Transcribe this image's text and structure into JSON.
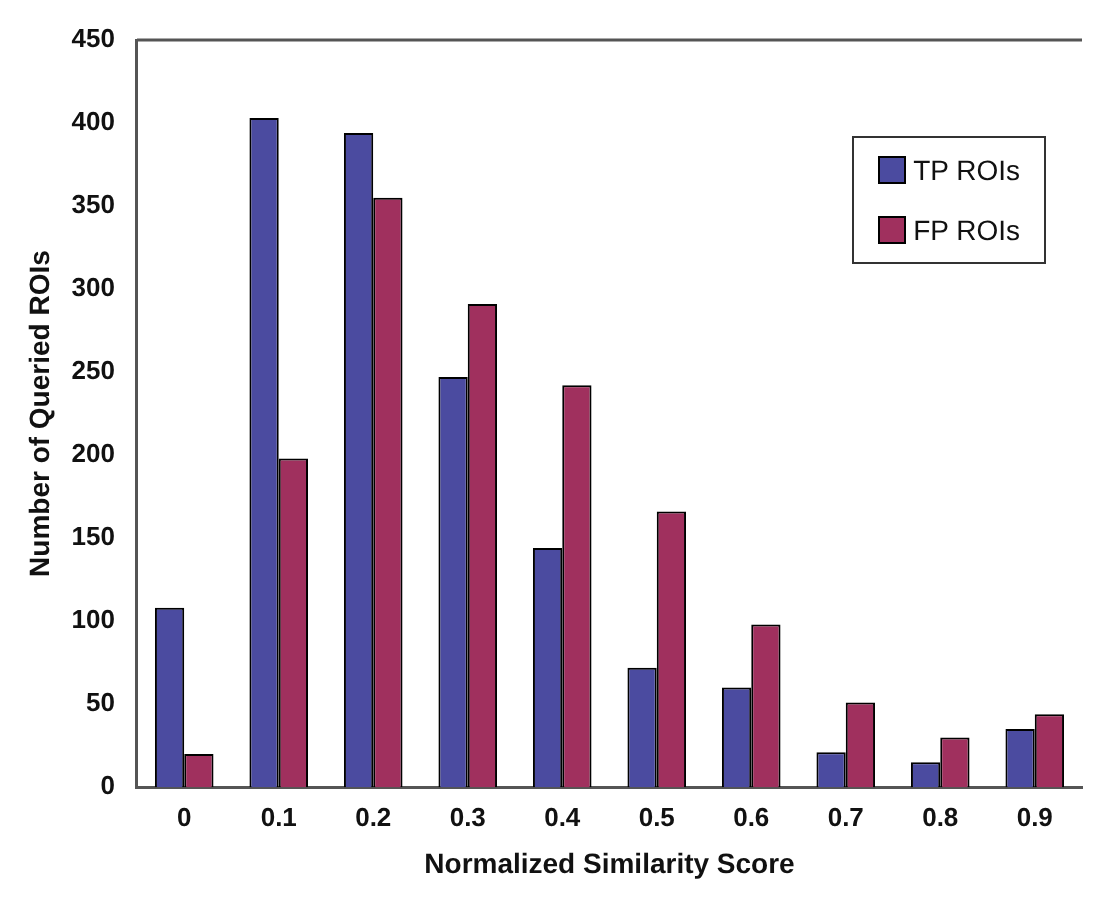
{
  "chart_data": {
    "type": "bar",
    "xlabel": "Normalized Similarity Score",
    "ylabel": "Number of Queried ROIs",
    "categories": [
      "0",
      "0.1",
      "0.2",
      "0.3",
      "0.4",
      "0.5",
      "0.6",
      "0.7",
      "0.8",
      "0.9"
    ],
    "series": [
      {
        "name": "TP ROIs",
        "color": "#4b4ba0",
        "values": [
          108,
          403,
          394,
          247,
          144,
          72,
          60,
          21,
          15,
          35
        ]
      },
      {
        "name": "FP ROIs",
        "color": "#a0305e",
        "values": [
          20,
          198,
          355,
          291,
          242,
          166,
          98,
          51,
          30,
          44
        ]
      }
    ],
    "ylim": [
      0,
      450
    ],
    "yticks": [
      0,
      50,
      100,
      150,
      200,
      250,
      300,
      350,
      400,
      450
    ],
    "grid": false,
    "legend": "top right"
  }
}
